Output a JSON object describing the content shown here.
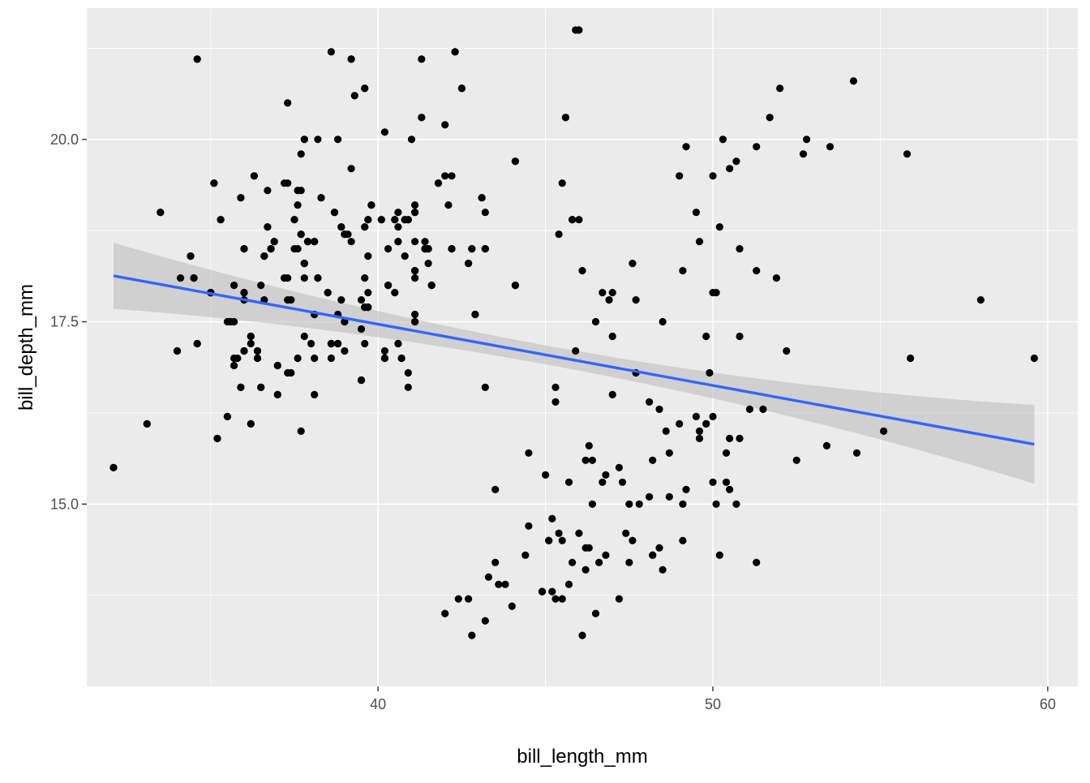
{
  "chart_data": {
    "type": "scatter",
    "xlabel": "bill_length_mm",
    "ylabel": "bill_depth_mm",
    "xlim": [
      31.3,
      60.9
    ],
    "ylim": [
      12.5,
      21.8
    ],
    "x_ticks": [
      40,
      50,
      60
    ],
    "x_tick_labels": [
      "40",
      "50",
      "60"
    ],
    "y_ticks": [
      15.0,
      17.5,
      20.0
    ],
    "y_tick_labels": [
      "15.0",
      "17.5",
      "20.0"
    ],
    "grid": true,
    "background": "#ebebeb",
    "grid_color": "#ffffff",
    "point_color": "#000000",
    "trend_color": "#3366ff",
    "ribbon_color": "#bebebe",
    "trend": {
      "method": "linear",
      "x": [
        32.1,
        59.6
      ],
      "y": [
        18.13,
        15.82
      ],
      "ci_lower": [
        17.66,
        15.22
      ],
      "ci_upper": [
        18.61,
        16.43
      ]
    },
    "points": [
      [
        32.1,
        15.5
      ],
      [
        33.1,
        16.1
      ],
      [
        33.5,
        19.0
      ],
      [
        34.0,
        17.1
      ],
      [
        34.1,
        18.1
      ],
      [
        34.4,
        18.4
      ],
      [
        34.5,
        18.1
      ],
      [
        34.6,
        21.1
      ],
      [
        34.6,
        17.2
      ],
      [
        35.0,
        17.9
      ],
      [
        35.1,
        19.4
      ],
      [
        35.2,
        15.9
      ],
      [
        35.3,
        18.9
      ],
      [
        35.5,
        16.2
      ],
      [
        35.6,
        17.5
      ],
      [
        35.7,
        17.5
      ],
      [
        35.8,
        17.0
      ],
      [
        35.9,
        16.6
      ],
      [
        35.9,
        19.2
      ],
      [
        36.0,
        18.5
      ],
      [
        36.0,
        17.8
      ],
      [
        36.0,
        17.9
      ],
      [
        36.0,
        17.1
      ],
      [
        36.2,
        17.3
      ],
      [
        36.2,
        16.1
      ],
      [
        36.3,
        19.5
      ],
      [
        36.4,
        17.0
      ],
      [
        36.5,
        16.6
      ],
      [
        36.6,
        18.4
      ],
      [
        36.7,
        19.3
      ],
      [
        36.7,
        18.8
      ],
      [
        36.8,
        18.5
      ],
      [
        36.9,
        18.6
      ],
      [
        37.0,
        16.5
      ],
      [
        37.0,
        16.9
      ],
      [
        37.3,
        18.1
      ],
      [
        37.3,
        19.4
      ],
      [
        37.4,
        17.8
      ],
      [
        37.4,
        16.8
      ],
      [
        37.5,
        18.9
      ],
      [
        37.6,
        18.5
      ],
      [
        37.7,
        18.7
      ],
      [
        37.7,
        19.3
      ],
      [
        37.8,
        20.0
      ],
      [
        37.8,
        18.3
      ],
      [
        37.8,
        17.3
      ],
      [
        37.9,
        18.6
      ],
      [
        38.0,
        17.2
      ],
      [
        38.1,
        17.6
      ],
      [
        38.1,
        18.6
      ],
      [
        38.2,
        18.1
      ],
      [
        38.3,
        19.2
      ],
      [
        38.5,
        17.9
      ],
      [
        38.6,
        21.2
      ],
      [
        38.6,
        17.2
      ],
      [
        38.7,
        19.0
      ],
      [
        38.8,
        20.0
      ],
      [
        38.8,
        17.2
      ],
      [
        38.9,
        18.8
      ],
      [
        39.0,
        18.7
      ],
      [
        39.0,
        17.5
      ],
      [
        39.1,
        18.7
      ],
      [
        39.2,
        19.6
      ],
      [
        39.2,
        21.1
      ],
      [
        39.3,
        20.6
      ],
      [
        39.5,
        17.4
      ],
      [
        39.5,
        16.7
      ],
      [
        39.6,
        17.7
      ],
      [
        39.6,
        18.8
      ],
      [
        39.6,
        20.7
      ],
      [
        39.7,
        17.7
      ],
      [
        39.7,
        18.9
      ],
      [
        39.8,
        19.1
      ],
      [
        40.1,
        18.9
      ],
      [
        40.2,
        17.0
      ],
      [
        40.3,
        18.0
      ],
      [
        40.5,
        18.9
      ],
      [
        40.6,
        17.2
      ],
      [
        40.6,
        18.6
      ],
      [
        40.7,
        17.0
      ],
      [
        40.8,
        18.9
      ],
      [
        40.9,
        16.6
      ],
      [
        40.9,
        18.9
      ],
      [
        41.1,
        17.5
      ],
      [
        41.1,
        18.2
      ],
      [
        41.1,
        19.0
      ],
      [
        41.3,
        20.3
      ],
      [
        41.4,
        18.5
      ],
      [
        41.5,
        18.5
      ],
      [
        41.6,
        18.0
      ],
      [
        41.8,
        19.4
      ],
      [
        42.0,
        20.2
      ],
      [
        42.2,
        18.5
      ],
      [
        42.3,
        21.2
      ],
      [
        42.5,
        20.7
      ],
      [
        42.7,
        18.3
      ],
      [
        42.8,
        18.5
      ],
      [
        42.9,
        17.6
      ],
      [
        43.1,
        19.2
      ],
      [
        43.2,
        18.5
      ],
      [
        43.2,
        16.6
      ],
      [
        44.1,
        18.0
      ],
      [
        44.1,
        19.7
      ],
      [
        45.8,
        18.9
      ],
      [
        46.0,
        18.9
      ],
      [
        45.4,
        18.7
      ],
      [
        45.6,
        20.3
      ],
      [
        45.9,
        21.5
      ],
      [
        46.1,
        18.2
      ],
      [
        46.5,
        17.5
      ],
      [
        46.7,
        17.9
      ],
      [
        47.0,
        17.3
      ],
      [
        47.6,
        18.3
      ],
      [
        49.0,
        19.5
      ],
      [
        49.2,
        19.9
      ],
      [
        49.6,
        18.6
      ],
      [
        50.0,
        19.5
      ],
      [
        50.3,
        20.0
      ],
      [
        50.5,
        19.6
      ],
      [
        50.7,
        19.7
      ],
      [
        51.3,
        19.9
      ],
      [
        51.7,
        20.3
      ],
      [
        52.0,
        20.7
      ],
      [
        52.7,
        19.8
      ],
      [
        52.8,
        20.0
      ],
      [
        53.5,
        19.9
      ],
      [
        54.2,
        20.8
      ],
      [
        55.8,
        19.8
      ],
      [
        58.0,
        17.8
      ],
      [
        55.9,
        17.0
      ],
      [
        49.5,
        19.0
      ],
      [
        50.2,
        18.8
      ],
      [
        50.8,
        18.5
      ],
      [
        51.3,
        18.2
      ],
      [
        51.9,
        18.1
      ],
      [
        52.2,
        17.1
      ],
      [
        49.1,
        18.2
      ],
      [
        49.8,
        17.3
      ],
      [
        50.0,
        17.9
      ],
      [
        50.8,
        17.3
      ],
      [
        42.0,
        13.5
      ],
      [
        42.4,
        13.7
      ],
      [
        42.7,
        13.7
      ],
      [
        42.8,
        13.2
      ],
      [
        43.2,
        13.4
      ],
      [
        43.3,
        14.0
      ],
      [
        43.5,
        15.2
      ],
      [
        43.6,
        13.9
      ],
      [
        44.0,
        13.6
      ],
      [
        44.4,
        14.3
      ],
      [
        44.5,
        15.7
      ],
      [
        44.9,
        13.8
      ],
      [
        45.1,
        14.5
      ],
      [
        45.2,
        13.8
      ],
      [
        45.3,
        13.7
      ],
      [
        45.5,
        13.7
      ],
      [
        45.5,
        14.5
      ],
      [
        45.7,
        13.9
      ],
      [
        45.8,
        14.2
      ],
      [
        46.1,
        13.2
      ],
      [
        46.2,
        14.1
      ],
      [
        46.3,
        15.8
      ],
      [
        46.4,
        15.0
      ],
      [
        46.5,
        13.5
      ],
      [
        46.6,
        14.2
      ],
      [
        46.8,
        14.3
      ],
      [
        47.2,
        13.7
      ],
      [
        47.4,
        14.6
      ],
      [
        47.5,
        14.2
      ],
      [
        47.8,
        15.0
      ],
      [
        48.1,
        15.1
      ],
      [
        48.2,
        14.3
      ],
      [
        48.4,
        14.4
      ],
      [
        48.5,
        14.1
      ],
      [
        48.7,
        15.7
      ],
      [
        49.1,
        14.5
      ],
      [
        49.2,
        15.2
      ],
      [
        49.5,
        16.2
      ],
      [
        49.8,
        16.1
      ],
      [
        50.1,
        15.0
      ],
      [
        50.2,
        14.3
      ],
      [
        50.4,
        15.7
      ],
      [
        50.5,
        15.9
      ],
      [
        50.7,
        15.0
      ],
      [
        51.1,
        16.3
      ],
      [
        51.3,
        14.2
      ],
      [
        51.5,
        16.3
      ],
      [
        52.5,
        15.6
      ],
      [
        53.4,
        15.8
      ],
      [
        54.3,
        15.7
      ],
      [
        55.1,
        16.0
      ],
      [
        59.6,
        17.0
      ],
      [
        45.0,
        15.4
      ],
      [
        45.3,
        16.4
      ],
      [
        46.2,
        15.6
      ],
      [
        47.3,
        15.3
      ],
      [
        48.6,
        16.0
      ],
      [
        49.0,
        16.1
      ],
      [
        49.6,
        16.0
      ],
      [
        50.0,
        16.2
      ],
      [
        47.7,
        16.8
      ],
      [
        48.1,
        16.4
      ],
      [
        48.4,
        16.3
      ],
      [
        45.9,
        17.1
      ],
      [
        45.3,
        16.6
      ],
      [
        46.4,
        15.6
      ],
      [
        43.5,
        14.2
      ],
      [
        44.9,
        13.8
      ],
      [
        45.2,
        14.8
      ],
      [
        46.8,
        15.4
      ],
      [
        47.0,
        16.5
      ],
      [
        47.5,
        15.0
      ],
      [
        48.7,
        15.1
      ],
      [
        49.9,
        16.8
      ],
      [
        50.4,
        15.3
      ],
      [
        50.8,
        15.9
      ],
      [
        43.8,
        13.9
      ],
      [
        44.5,
        14.7
      ],
      [
        45.1,
        14.5
      ],
      [
        45.4,
        14.6
      ],
      [
        45.7,
        15.3
      ],
      [
        46.2,
        14.4
      ],
      [
        46.7,
        15.3
      ],
      [
        47.6,
        14.5
      ],
      [
        48.2,
        15.6
      ],
      [
        49.6,
        15.9
      ],
      [
        50.0,
        15.3
      ],
      [
        50.5,
        15.2
      ],
      [
        46.0,
        14.6
      ],
      [
        46.3,
        14.4
      ],
      [
        47.2,
        15.5
      ],
      [
        48.2,
        14.3
      ],
      [
        49.1,
        15.0
      ],
      [
        49.8,
        16.1
      ],
      [
        50.1,
        17.9
      ],
      [
        48.5,
        17.5
      ],
      [
        47.7,
        17.8
      ],
      [
        47.0,
        17.9
      ],
      [
        46.9,
        17.8
      ],
      [
        45.5,
        19.4
      ],
      [
        36.4,
        17.1
      ],
      [
        38.9,
        17.8
      ],
      [
        39.5,
        16.7
      ],
      [
        40.3,
        18.0
      ],
      [
        37.8,
        18.3
      ],
      [
        41.1,
        17.6
      ],
      [
        38.6,
        17.2
      ],
      [
        34.6,
        21.1
      ],
      [
        36.6,
        17.8
      ],
      [
        38.7,
        19.0
      ],
      [
        42.5,
        20.7
      ],
      [
        34.4,
        18.4
      ],
      [
        46.0,
        21.5
      ],
      [
        37.8,
        18.3
      ],
      [
        37.7,
        18.7
      ],
      [
        35.9,
        19.2
      ],
      [
        38.2,
        18.1
      ],
      [
        38.8,
        17.2
      ],
      [
        35.3,
        18.9
      ],
      [
        40.6,
        18.6
      ],
      [
        40.5,
        17.9
      ],
      [
        37.9,
        18.6
      ],
      [
        40.5,
        18.9
      ],
      [
        39.5,
        16.7
      ],
      [
        37.2,
        18.1
      ],
      [
        39.5,
        17.8
      ],
      [
        40.9,
        18.9
      ],
      [
        36.4,
        17.0
      ],
      [
        39.2,
        21.1
      ],
      [
        38.8,
        17.2
      ],
      [
        42.2,
        18.5
      ],
      [
        37.6,
        19.3
      ],
      [
        39.8,
        19.1
      ],
      [
        36.5,
        18.0
      ],
      [
        40.8,
        18.4
      ],
      [
        36.0,
        18.5
      ],
      [
        44.1,
        19.7
      ],
      [
        37.0,
        16.9
      ],
      [
        39.6,
        18.8
      ],
      [
        41.1,
        19.0
      ],
      [
        37.5,
        18.9
      ],
      [
        36.0,
        17.9
      ],
      [
        42.3,
        21.2
      ],
      [
        39.6,
        17.7
      ],
      [
        40.1,
        18.9
      ],
      [
        35.0,
        17.9
      ],
      [
        42.0,
        19.5
      ],
      [
        34.5,
        18.1
      ],
      [
        41.4,
        18.6
      ],
      [
        39.0,
        17.5
      ],
      [
        40.6,
        18.8
      ],
      [
        36.5,
        16.6
      ],
      [
        37.6,
        19.1
      ],
      [
        35.7,
        16.9
      ],
      [
        41.3,
        21.1
      ],
      [
        37.6,
        17.0
      ],
      [
        41.1,
        18.2
      ],
      [
        36.4,
        17.1
      ],
      [
        41.6,
        18.0
      ],
      [
        35.5,
        16.2
      ],
      [
        41.1,
        19.1
      ],
      [
        35.9,
        16.6
      ],
      [
        41.8,
        19.4
      ],
      [
        33.5,
        19.0
      ],
      [
        39.7,
        18.4
      ],
      [
        39.6,
        17.2
      ],
      [
        45.8,
        18.9
      ],
      [
        35.5,
        17.5
      ],
      [
        42.8,
        18.5
      ],
      [
        40.9,
        16.8
      ],
      [
        37.2,
        19.4
      ],
      [
        36.2,
        16.1
      ],
      [
        42.1,
        19.1
      ],
      [
        34.6,
        17.2
      ],
      [
        42.9,
        17.6
      ],
      [
        36.7,
        18.8
      ],
      [
        35.1,
        19.4
      ],
      [
        37.3,
        17.8
      ],
      [
        41.3,
        20.3
      ],
      [
        36.3,
        19.5
      ],
      [
        36.9,
        18.6
      ],
      [
        38.3,
        19.2
      ],
      [
        38.9,
        18.8
      ],
      [
        35.7,
        18.0
      ],
      [
        41.1,
        18.1
      ],
      [
        34.0,
        17.1
      ],
      [
        39.6,
        18.1
      ],
      [
        36.2,
        17.3
      ],
      [
        40.8,
        18.9
      ],
      [
        38.1,
        18.6
      ],
      [
        40.3,
        18.5
      ],
      [
        33.1,
        16.1
      ],
      [
        43.2,
        18.5
      ],
      [
        35.0,
        17.9
      ],
      [
        41.0,
        20.0
      ],
      [
        37.7,
        16.0
      ],
      [
        37.8,
        20.0
      ],
      [
        37.9,
        18.6
      ],
      [
        39.7,
        18.9
      ],
      [
        38.6,
        17.2
      ],
      [
        38.2,
        20.0
      ],
      [
        38.1,
        17.0
      ],
      [
        43.2,
        19.0
      ],
      [
        38.1,
        16.5
      ],
      [
        45.6,
        20.3
      ],
      [
        39.7,
        17.7
      ],
      [
        42.2,
        19.5
      ],
      [
        39.6,
        20.7
      ],
      [
        42.7,
        18.3
      ],
      [
        38.6,
        17.0
      ],
      [
        37.3,
        20.5
      ],
      [
        35.7,
        17.0
      ],
      [
        41.1,
        18.6
      ],
      [
        36.2,
        17.2
      ],
      [
        37.7,
        19.8
      ],
      [
        40.2,
        17.0
      ],
      [
        41.4,
        18.5
      ],
      [
        35.2,
        15.9
      ],
      [
        40.6,
        19.0
      ],
      [
        38.8,
        17.6
      ],
      [
        41.5,
        18.3
      ],
      [
        39.0,
        17.1
      ],
      [
        44.1,
        18.0
      ],
      [
        38.5,
        17.9
      ],
      [
        43.1,
        19.2
      ],
      [
        36.8,
        18.5
      ],
      [
        37.5,
        18.5
      ],
      [
        38.1,
        17.6
      ],
      [
        41.1,
        17.5
      ],
      [
        35.6,
        17.5
      ],
      [
        40.2,
        20.1
      ],
      [
        37.0,
        16.5
      ],
      [
        39.7,
        17.9
      ],
      [
        40.2,
        17.1
      ],
      [
        40.6,
        17.2
      ],
      [
        32.1,
        15.5
      ],
      [
        40.7,
        17.0
      ],
      [
        37.3,
        16.8
      ],
      [
        39.0,
        18.7
      ],
      [
        39.2,
        18.6
      ],
      [
        36.6,
        18.4
      ],
      [
        36.0,
        17.8
      ],
      [
        37.8,
        18.1
      ],
      [
        36.0,
        17.1
      ],
      [
        41.5,
        18.5
      ]
    ]
  }
}
